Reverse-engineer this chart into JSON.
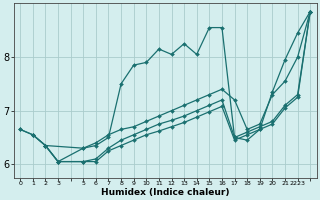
{
  "xlabel": "Humidex (Indice chaleur)",
  "bg_color": "#d4eeee",
  "grid_color": "#aacccc",
  "line_color": "#1a7070",
  "xlim": [
    -0.5,
    23.5
  ],
  "ylim": [
    5.75,
    9.0
  ],
  "yticks": [
    6,
    7,
    8
  ],
  "xtick_labels": [
    "0",
    "1",
    "2",
    "3",
    "5",
    "6",
    "7",
    "8",
    "9",
    "10",
    "11",
    "12",
    "13",
    "14",
    "15",
    "16",
    "17",
    "18",
    "19",
    "20",
    "21",
    "2223"
  ],
  "series": [
    {
      "x": [
        0,
        1,
        2,
        5,
        6,
        7,
        8,
        9,
        10,
        11,
        12,
        13,
        14,
        15,
        16,
        17,
        18,
        19,
        20,
        21,
        22,
        23
      ],
      "y": [
        6.65,
        6.55,
        6.35,
        6.3,
        6.35,
        6.5,
        7.5,
        7.85,
        7.9,
        8.15,
        8.05,
        8.25,
        8.05,
        8.55,
        8.55,
        6.5,
        6.45,
        6.65,
        7.35,
        7.95,
        8.45,
        8.85
      ]
    },
    {
      "x": [
        0,
        1,
        2,
        3,
        5,
        6,
        7,
        8,
        9,
        10,
        11,
        12,
        13,
        14,
        15,
        16,
        17,
        18,
        19,
        20,
        21,
        22,
        23
      ],
      "y": [
        6.65,
        6.55,
        6.35,
        6.05,
        6.3,
        6.4,
        6.55,
        6.65,
        6.7,
        6.8,
        6.9,
        7.0,
        7.1,
        7.2,
        7.3,
        7.4,
        7.2,
        6.65,
        6.75,
        7.3,
        7.55,
        8.0,
        8.85
      ]
    },
    {
      "x": [
        1,
        2,
        3,
        5,
        6,
        7,
        8,
        9,
        10,
        11,
        12,
        13,
        14,
        15,
        16,
        17,
        18,
        19,
        20,
        21,
        22,
        23
      ],
      "y": [
        6.55,
        6.35,
        6.05,
        6.05,
        6.1,
        6.3,
        6.45,
        6.55,
        6.65,
        6.75,
        6.82,
        6.9,
        7.0,
        7.1,
        7.2,
        6.5,
        6.6,
        6.7,
        6.8,
        7.1,
        7.3,
        8.85
      ]
    },
    {
      "x": [
        2,
        3,
        5,
        6,
        7,
        8,
        9,
        10,
        11,
        12,
        13,
        14,
        15,
        16,
        17,
        18,
        19,
        20,
        21,
        22,
        23
      ],
      "y": [
        6.35,
        6.05,
        6.05,
        6.05,
        6.25,
        6.35,
        6.45,
        6.55,
        6.62,
        6.7,
        6.78,
        6.88,
        6.98,
        7.08,
        6.45,
        6.55,
        6.65,
        6.75,
        7.05,
        7.25,
        8.85
      ]
    }
  ]
}
